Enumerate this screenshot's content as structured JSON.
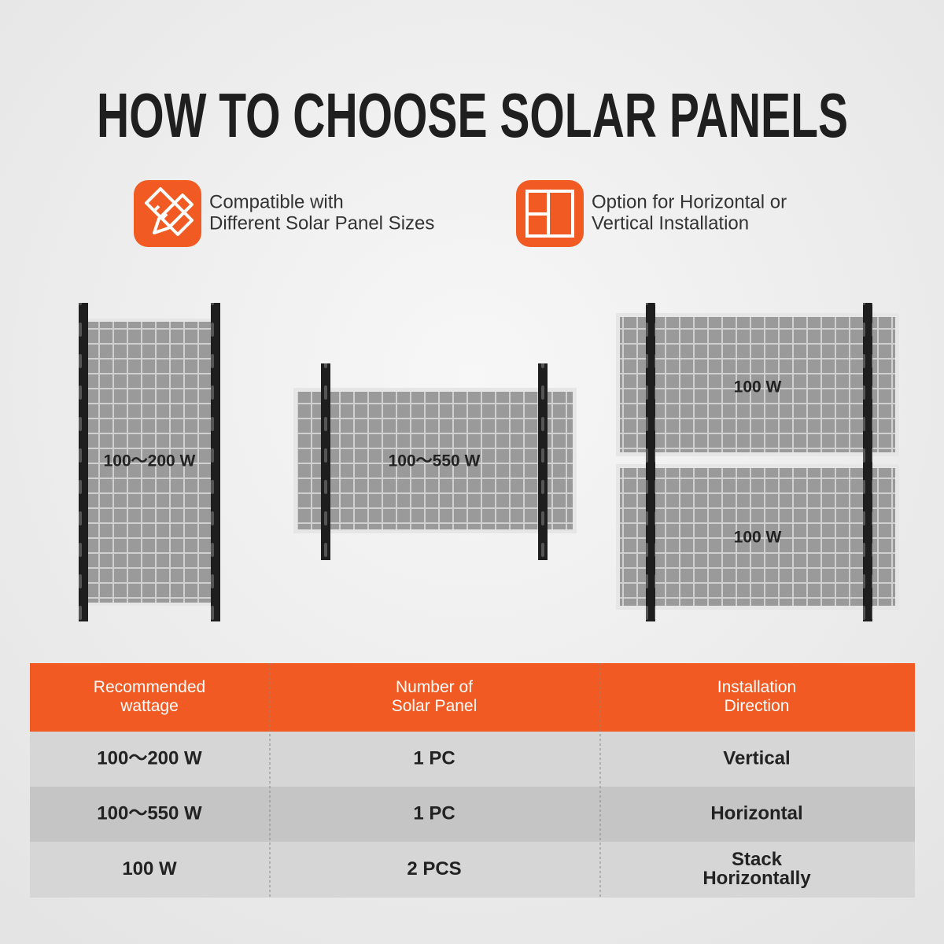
{
  "title": "HOW TO CHOOSE SOLAR PANELS",
  "features": [
    {
      "lines": [
        "Compatible with",
        "Different Solar Panel Sizes"
      ]
    },
    {
      "lines": [
        "Option for Horizontal or",
        "Vertical Installation"
      ]
    }
  ],
  "panels": [
    {
      "label": "100～200 W"
    },
    {
      "label": "100～550 W"
    },
    {
      "label": "100 W"
    },
    {
      "label": "100 W"
    }
  ],
  "table": {
    "header": [
      [
        "Recommended",
        "wattage"
      ],
      [
        "Number of",
        "Solar Panel"
      ],
      [
        "Installation",
        "Direction"
      ]
    ],
    "rows": [
      [
        [
          "100～200 W"
        ],
        [
          "1 PC"
        ],
        [
          "Vertical"
        ]
      ],
      [
        [
          "100～550 W"
        ],
        [
          "1 PC"
        ],
        [
          "Horizontal"
        ]
      ],
      [
        [
          "100 W"
        ],
        [
          "2 PCS"
        ],
        [
          "Stack",
          "Horizontally"
        ]
      ]
    ]
  }
}
